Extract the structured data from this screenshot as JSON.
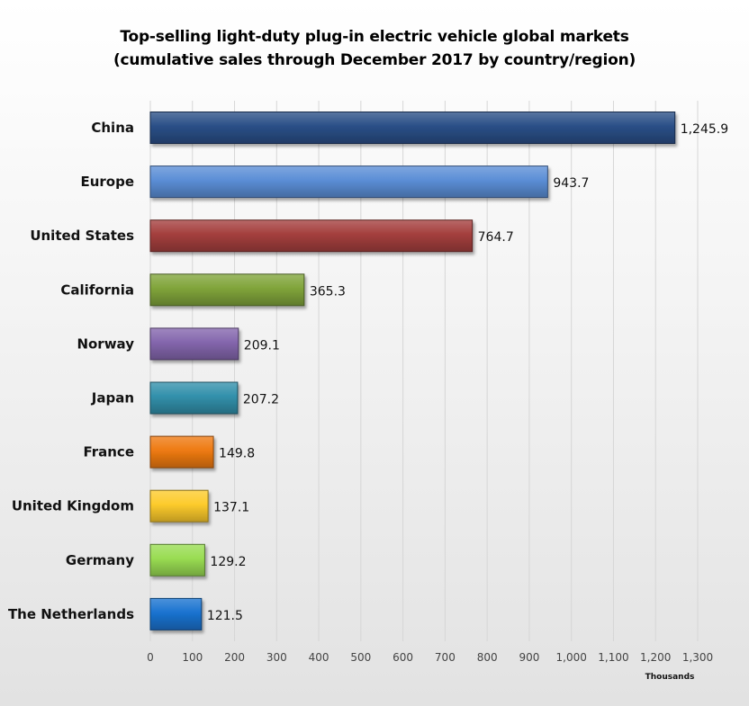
{
  "chart_data": {
    "type": "bar",
    "orientation": "horizontal",
    "title": "Top-selling light-duty plug-in electric vehicle global markets",
    "subtitle": "(cumulative sales through December 2017 by country/region)",
    "xlabel": "Thousands",
    "ylabel": "",
    "xlim": [
      0,
      1300
    ],
    "x_ticks": [
      0,
      100,
      200,
      300,
      400,
      500,
      600,
      700,
      800,
      900,
      1000,
      1100,
      1200,
      1300
    ],
    "x_tick_labels": [
      "0",
      "100",
      "200",
      "300",
      "400",
      "500",
      "600",
      "700",
      "800",
      "900",
      "1,000",
      "1,100",
      "1,200",
      "1,300"
    ],
    "grid": "vertical",
    "categories": [
      "China",
      "Europe",
      "United States",
      "California",
      "Norway",
      "Japan",
      "France",
      "United Kingdom",
      "Germany",
      "The Netherlands"
    ],
    "values": [
      1245.9,
      943.7,
      764.7,
      365.3,
      209.1,
      207.2,
      149.8,
      137.1,
      129.2,
      121.5
    ],
    "value_labels": [
      "1,245.9",
      "943.7",
      "764.7",
      "365.3",
      "209.1",
      "207.2",
      "149.8",
      "137.1",
      "129.2",
      "121.5"
    ],
    "colors": [
      "#2a4f87",
      "#5b8ed6",
      "#a43f3d",
      "#80a43a",
      "#8466ad",
      "#3290ab",
      "#ee7a12",
      "#fdcb2c",
      "#99dc52",
      "#1a73d0"
    ]
  }
}
